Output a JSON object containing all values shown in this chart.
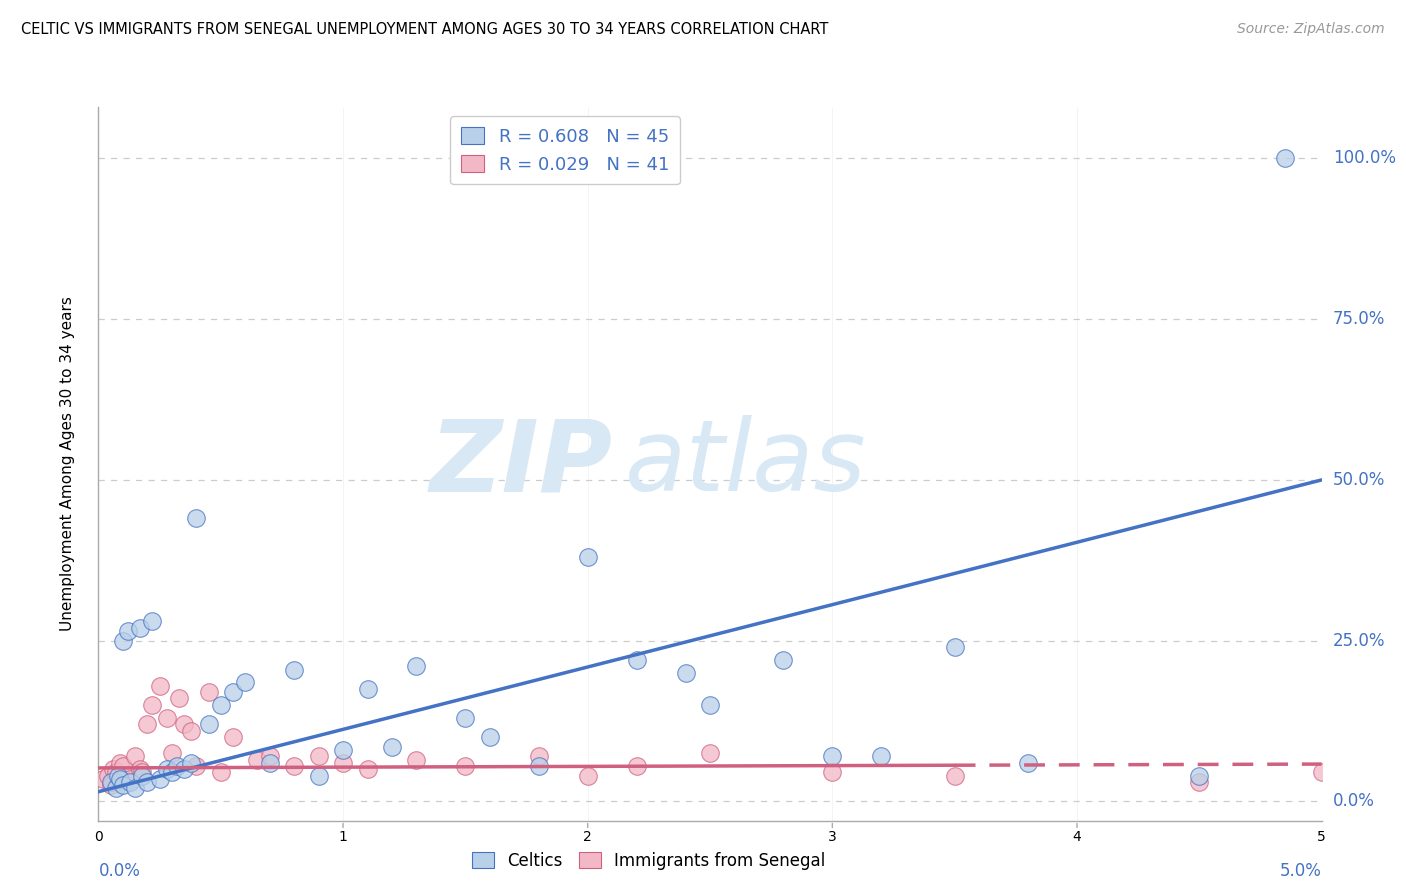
{
  "title": "CELTIC VS IMMIGRANTS FROM SENEGAL UNEMPLOYMENT AMONG AGES 30 TO 34 YEARS CORRELATION CHART",
  "source": "Source: ZipAtlas.com",
  "ylabel": "Unemployment Among Ages 30 to 34 years",
  "xlim": [
    0.0,
    5.0
  ],
  "ylim": [
    -3.0,
    108.0
  ],
  "yticks": [
    0.0,
    25.0,
    50.0,
    75.0,
    100.0
  ],
  "xtick_left": "0.0%",
  "xtick_right": "5.0%",
  "blue_face": "#b8d0e8",
  "blue_edge": "#4472c4",
  "pink_face": "#f2b8c6",
  "pink_edge": "#d06080",
  "blue_line": "#4472c4",
  "pink_line": "#d06080",
  "grid_color": "#cccccc",
  "label_color": "#4472c4",
  "watermark_color": "#d8e8f5",
  "celtics_x": [
    0.05,
    0.07,
    0.08,
    0.09,
    0.1,
    0.1,
    0.12,
    0.13,
    0.15,
    0.17,
    0.18,
    0.2,
    0.22,
    0.25,
    0.28,
    0.3,
    0.32,
    0.35,
    0.38,
    0.4,
    0.45,
    0.5,
    0.55,
    0.6,
    0.7,
    0.8,
    0.9,
    1.0,
    1.1,
    1.2,
    1.3,
    1.5,
    1.6,
    1.8,
    2.0,
    2.2,
    2.4,
    2.5,
    2.8,
    3.0,
    3.2,
    3.5,
    3.8,
    4.5,
    4.85
  ],
  "celtics_y": [
    3.0,
    2.0,
    4.0,
    3.5,
    2.5,
    25.0,
    26.5,
    3.0,
    2.0,
    27.0,
    4.0,
    3.0,
    28.0,
    3.5,
    5.0,
    4.5,
    5.5,
    5.0,
    6.0,
    44.0,
    12.0,
    15.0,
    17.0,
    18.5,
    6.0,
    20.5,
    4.0,
    8.0,
    17.5,
    8.5,
    21.0,
    13.0,
    10.0,
    5.5,
    38.0,
    22.0,
    20.0,
    15.0,
    22.0,
    7.0,
    7.0,
    24.0,
    6.0,
    4.0,
    100.0
  ],
  "senegal_x": [
    0.02,
    0.04,
    0.05,
    0.06,
    0.07,
    0.08,
    0.09,
    0.1,
    0.12,
    0.13,
    0.15,
    0.17,
    0.18,
    0.2,
    0.22,
    0.25,
    0.28,
    0.3,
    0.33,
    0.35,
    0.38,
    0.4,
    0.45,
    0.5,
    0.55,
    0.65,
    0.7,
    0.8,
    0.9,
    1.0,
    1.1,
    1.3,
    1.5,
    1.8,
    2.0,
    2.2,
    2.5,
    3.0,
    3.5,
    4.5,
    5.0
  ],
  "senegal_y": [
    3.5,
    4.0,
    2.5,
    5.0,
    4.5,
    3.0,
    6.0,
    5.5,
    4.0,
    3.5,
    7.0,
    5.0,
    4.5,
    12.0,
    15.0,
    18.0,
    13.0,
    7.5,
    16.0,
    12.0,
    11.0,
    5.5,
    17.0,
    4.5,
    10.0,
    6.5,
    7.0,
    5.5,
    7.0,
    6.0,
    5.0,
    6.5,
    5.5,
    7.0,
    4.0,
    5.5,
    7.5,
    4.5,
    4.0,
    3.0,
    4.5
  ],
  "blue_trend_x0": 0.0,
  "blue_trend_y0": 1.5,
  "blue_trend_x1": 5.0,
  "blue_trend_y1": 50.0,
  "pink_trend_x0": 0.0,
  "pink_trend_y0": 5.2,
  "pink_trend_x1": 5.0,
  "pink_trend_y1": 5.8,
  "pink_solid_end": 3.5
}
